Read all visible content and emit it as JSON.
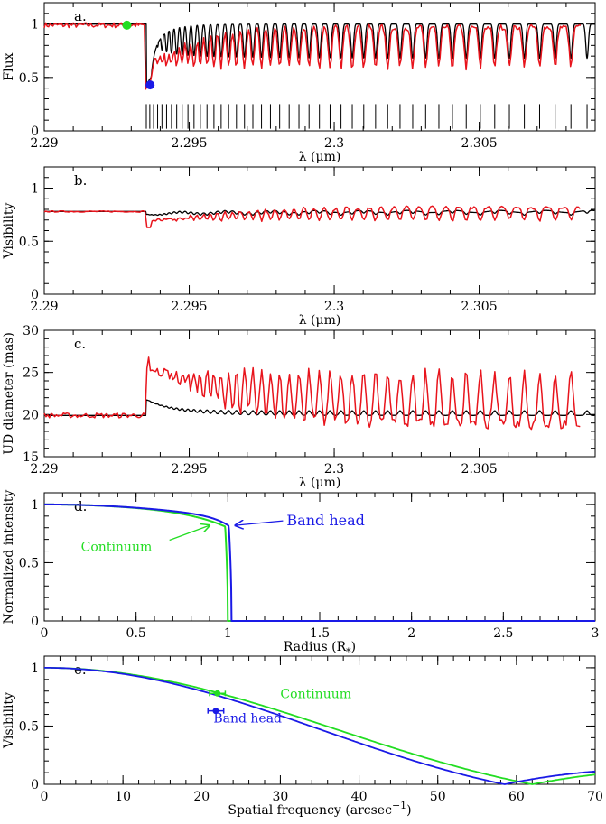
{
  "chart_data": [
    {
      "type": "line",
      "panel_tag": "a.",
      "xlabel": "λ (μm)",
      "ylabel": "Flux",
      "xlim": [
        2.29,
        2.309
      ],
      "ylim": [
        0,
        1.2
      ],
      "xticks": [
        2.29,
        2.295,
        2.3,
        2.305
      ],
      "xtick_labels": [
        "2.29",
        "2.295",
        "2.3",
        "2.305"
      ],
      "yticks": [
        0,
        0.5,
        1
      ],
      "ytick_labels": [
        "0",
        "0.5",
        "1"
      ],
      "colors": {
        "observed": "#e8141c",
        "model": "#000000"
      },
      "band_head_wavelength": 2.29352,
      "line_spacing_start": 0.00012,
      "line_spacing_growth": 9.9e-06,
      "line_depth": 0.45,
      "line_marker_height": [
        0.02,
        0.25
      ],
      "markers": [
        {
          "name": "continuum",
          "x": 2.29285,
          "y": 0.99,
          "color": "#22dd22"
        },
        {
          "name": "band head",
          "x": 2.29365,
          "y": 0.43,
          "color": "#1a1ae6"
        }
      ]
    },
    {
      "type": "line",
      "panel_tag": "b.",
      "xlabel": "λ (μm)",
      "ylabel": "Visibility",
      "xlim": [
        2.29,
        2.309
      ],
      "ylim": [
        0,
        1.2
      ],
      "xticks": [
        2.29,
        2.295,
        2.3,
        2.305
      ],
      "xtick_labels": [
        "2.29",
        "2.295",
        "2.3",
        "2.305"
      ],
      "yticks": [
        0,
        0.5,
        1
      ],
      "ytick_labels": [
        "0",
        "0.5",
        "1"
      ],
      "colors": {
        "observed": "#e8141c",
        "model": "#000000"
      },
      "continuum_level": 0.78,
      "min_level": 0.63
    },
    {
      "type": "line",
      "panel_tag": "c.",
      "xlabel": "λ (μm)",
      "ylabel": "UD diameter (mas)",
      "xlim": [
        2.29,
        2.309
      ],
      "ylim": [
        15,
        30
      ],
      "xticks": [
        2.29,
        2.295,
        2.3,
        2.305
      ],
      "xtick_labels": [
        "2.29",
        "2.295",
        "2.3",
        "2.305"
      ],
      "yticks": [
        15,
        20,
        25,
        30
      ],
      "ytick_labels": [
        "15",
        "20",
        "25",
        "30"
      ],
      "colors": {
        "observed": "#e8141c",
        "model": "#000000"
      },
      "continuum_level": 19.9,
      "max_level": 26.8
    },
    {
      "type": "line",
      "panel_tag": "d.",
      "xlabel": "Radius (R",
      "xlabel_sub": "*",
      "xlabel_end": ")",
      "ylabel": "Normalized intensity",
      "xlim": [
        0,
        3
      ],
      "ylim": [
        0,
        1.1
      ],
      "xticks": [
        0,
        0.5,
        1,
        1.5,
        2,
        2.5,
        3
      ],
      "xtick_labels": [
        "0",
        "0.5",
        "1",
        "1.5",
        "2",
        "2.5",
        "3"
      ],
      "yticks": [
        0,
        0.5,
        1
      ],
      "ytick_labels": [
        "0",
        "0.5",
        "1"
      ],
      "series": [
        {
          "name": "Continuum",
          "color": "#22dd22",
          "edge_radius": 1.0,
          "limb_darkening_power": 6
        },
        {
          "name": "Band head",
          "color": "#1a1ae6",
          "edge_radius": 1.02,
          "limb_darkening_power": 12
        }
      ],
      "annotations": [
        {
          "text": "Band head",
          "color": "#1a1ae6",
          "x": 1.32,
          "y": 0.82,
          "arrow_to": [
            1.04,
            0.82
          ]
        },
        {
          "text": "Continuum",
          "color": "#22dd22",
          "x": 0.2,
          "y": 0.6,
          "arrow_to": [
            0.9,
            0.82
          ]
        }
      ]
    },
    {
      "type": "line",
      "panel_tag": "e.",
      "xlabel": "Spatial frequency (arcsec",
      "xlabel_sup": "−1",
      "xlabel_end": ")",
      "ylabel": "Visibility",
      "xlim": [
        0,
        70
      ],
      "ylim": [
        0,
        1.1
      ],
      "xticks": [
        0,
        10,
        20,
        30,
        40,
        50,
        60,
        70
      ],
      "xtick_labels": [
        "0",
        "10",
        "20",
        "30",
        "40",
        "50",
        "60",
        "70"
      ],
      "yticks": [
        0,
        0.5,
        1
      ],
      "ytick_labels": [
        "0",
        "0.5",
        "1"
      ],
      "series": [
        {
          "name": "Continuum",
          "color": "#22dd22",
          "first_null": 62
        },
        {
          "name": "Band head",
          "color": "#1a1ae6",
          "first_null": 58.5
        }
      ],
      "points": [
        {
          "name": "Continuum",
          "x": 22.0,
          "y": 0.78,
          "xerr": 1.0,
          "color": "#22dd22"
        },
        {
          "name": "Band head",
          "x": 21.8,
          "y": 0.63,
          "xerr": 1.0,
          "color": "#1a1ae6"
        }
      ],
      "annotations": [
        {
          "text": "Continuum",
          "color": "#22dd22",
          "x": 30,
          "y": 0.74
        },
        {
          "text": "Band head",
          "color": "#1a1ae6",
          "x": 21.5,
          "y": 0.53
        }
      ]
    }
  ]
}
